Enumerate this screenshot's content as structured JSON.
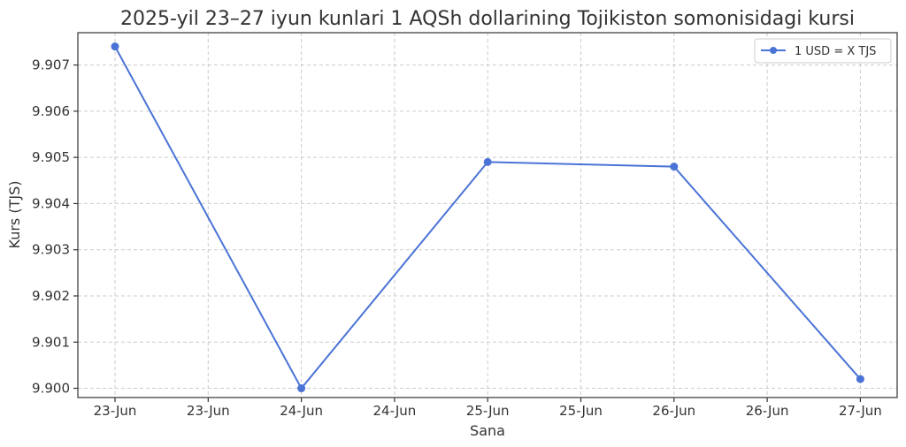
{
  "chart_data": {
    "type": "line",
    "title": "2025-yil 23–27 iyun kunlari 1 AQSh dollarining Tojikiston somonisidagi kursi",
    "xlabel": "Sana",
    "ylabel": "Kurs (TJS)",
    "x_tick_labels": [
      "23-Jun",
      "23-Jun",
      "24-Jun",
      "24-Jun",
      "25-Jun",
      "25-Jun",
      "26-Jun",
      "26-Jun",
      "27-Jun"
    ],
    "y_tick_labels": [
      "9.900",
      "9.901",
      "9.902",
      "9.903",
      "9.904",
      "9.905",
      "9.906",
      "9.907"
    ],
    "ylim": [
      9.8998,
      9.9077
    ],
    "grid": true,
    "legend_position": "top-right",
    "series": [
      {
        "name": "1 USD = X TJS",
        "color": "#4a73d6",
        "x": [
          "23-Jun",
          "24-Jun",
          "25-Jun",
          "26-Jun",
          "27-Jun"
        ],
        "values": [
          9.9074,
          9.9,
          9.9049,
          9.9048,
          9.9002
        ]
      }
    ]
  }
}
